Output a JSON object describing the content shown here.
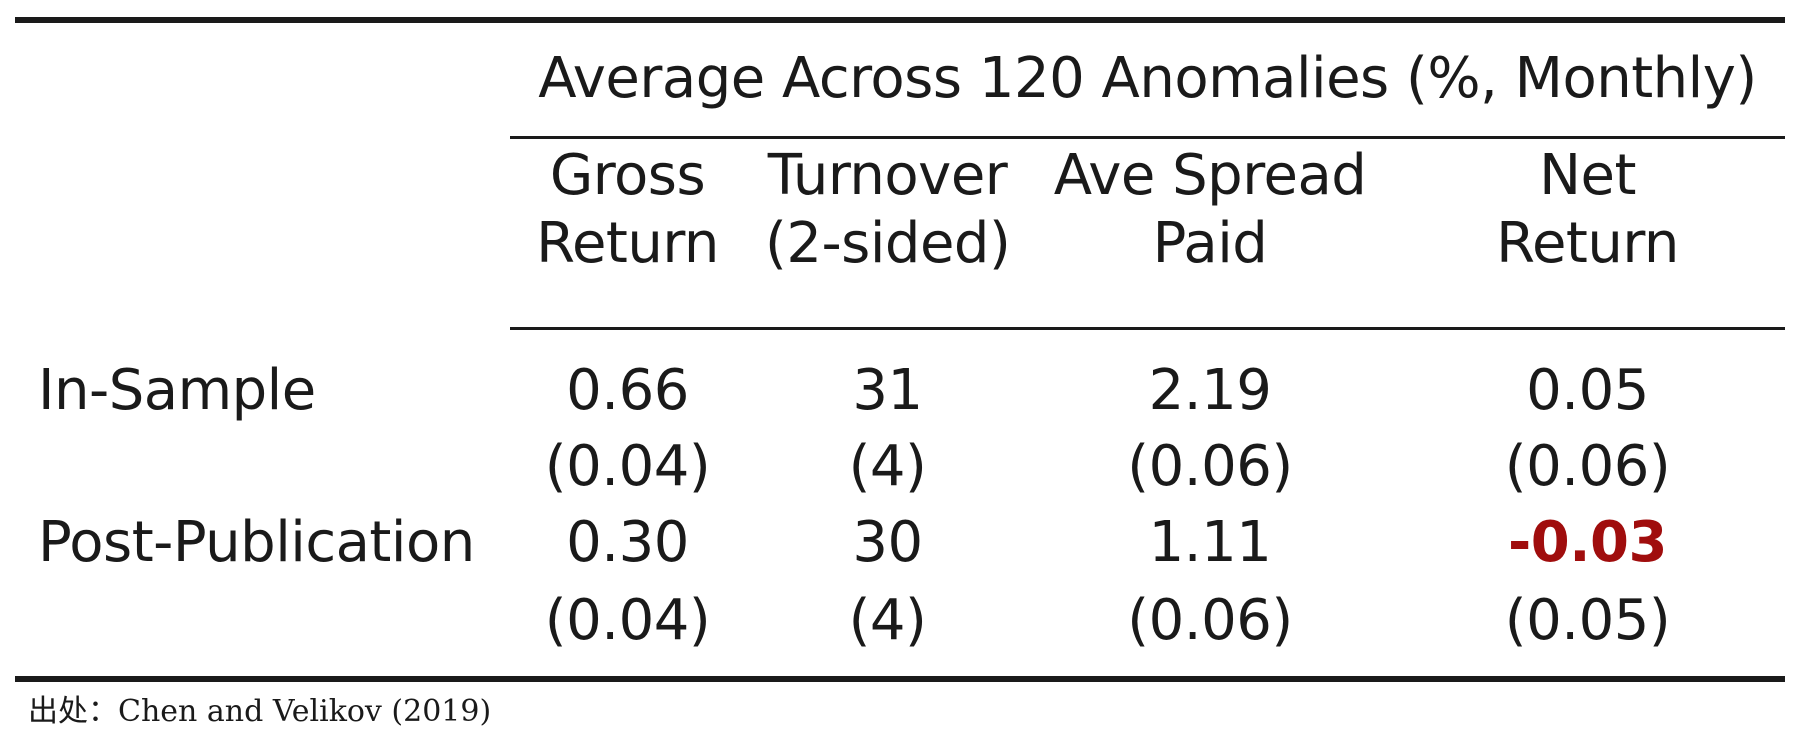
{
  "table": {
    "group_header": "Average Across 120 Anomalies (%, Monthly)",
    "columns": [
      {
        "line1": "Gross",
        "line2": "Return"
      },
      {
        "line1": "Turnover",
        "line2": "(2-sided)"
      },
      {
        "line1": "Ave Spread",
        "line2": "Paid"
      },
      {
        "line1": "Net",
        "line2": "Return"
      }
    ],
    "rows": [
      {
        "label": "In-Sample",
        "values": [
          "0.66",
          "31",
          "2.19",
          "0.05"
        ],
        "ses": [
          "(0.04)",
          "(4)",
          "(0.06)",
          "(0.06)"
        ]
      },
      {
        "label": "Post-Publication",
        "values": [
          "0.30",
          "30",
          "1.11",
          "-0.03"
        ],
        "ses": [
          "(0.04)",
          "(4)",
          "(0.06)",
          "(0.05)"
        ]
      }
    ],
    "highlight_color": "#a00d0d"
  },
  "source": "出处：Chen and Velikov (2019)"
}
